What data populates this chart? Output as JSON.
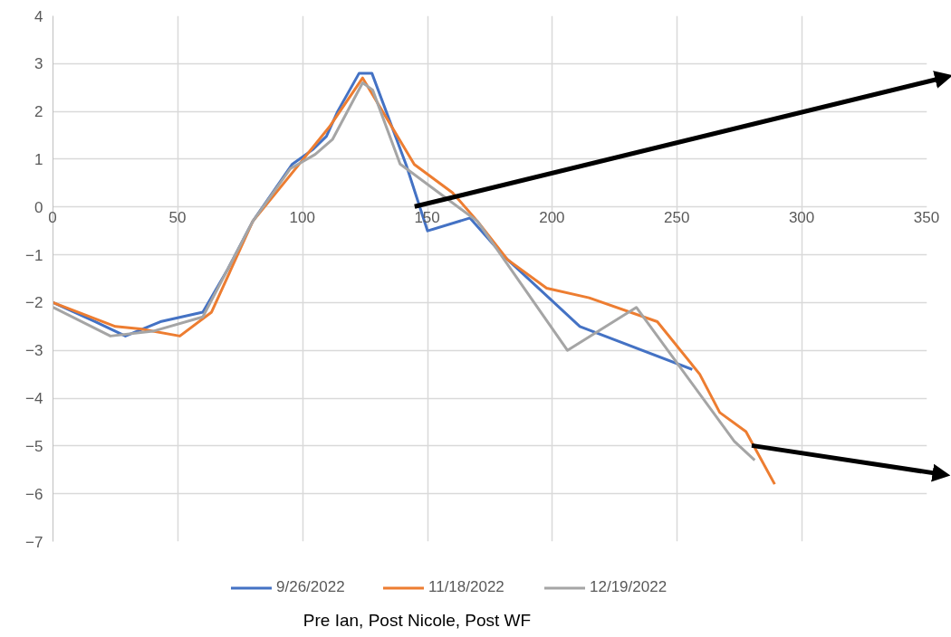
{
  "chart_data": {
    "type": "line",
    "annotations": [
      "Pre Ian, Post Nicole, Post WF"
    ],
    "xlim": [
      0,
      350
    ],
    "xticks": [
      0,
      50,
      100,
      150,
      200,
      250,
      300,
      350
    ],
    "ylim": [
      -7,
      4
    ],
    "yticks": [
      -7,
      -6,
      -5,
      -4,
      -3,
      -2,
      -1,
      0,
      1,
      2,
      3,
      4
    ],
    "grid": true,
    "legend": "bottom",
    "marker": "none",
    "line_style": "solid",
    "series": [
      {
        "name": "9/26/2022",
        "color": "#4472c4",
        "x": [
          0,
          17,
          29,
          43,
          60,
          70,
          80,
          95.7,
          104,
          109.5,
          114,
          122.6,
          127.7,
          141.5,
          150,
          167,
          180,
          211,
          256
        ],
        "values": [
          -2,
          -2.4,
          -2.7,
          -2.4,
          -2.2,
          -1.3,
          -0.3,
          0.89,
          1.2,
          1.48,
          2.0,
          2.8,
          2.8,
          0.87,
          -0.5,
          -0.23,
          -1.0,
          -2.5,
          -3.4
        ]
      },
      {
        "name": "11/18/2022",
        "color": "#ed7d31",
        "x": [
          0,
          25,
          35,
          50.8,
          63.5,
          80,
          94,
          110.6,
          124,
          144.7,
          160,
          170,
          182,
          197.7,
          214.7,
          242,
          259,
          267,
          277.5,
          289
        ],
        "values": [
          -2,
          -2.5,
          -2.55,
          -2.7,
          -2.2,
          -0.3,
          0.6,
          1.67,
          2.7,
          0.89,
          0.3,
          -0.3,
          -1.1,
          -1.7,
          -1.9,
          -2.4,
          -3.5,
          -4.3,
          -4.7,
          -5.8
        ]
      },
      {
        "name": "12/19/2022",
        "color": "#a5a5a5",
        "x": [
          0,
          23,
          40,
          60,
          80,
          95,
          105,
          112,
          124,
          128,
          139,
          170,
          206,
          233.6,
          272.8,
          281
        ],
        "values": [
          -2.1,
          -2.7,
          -2.6,
          -2.3,
          -0.3,
          0.8,
          1.1,
          1.42,
          2.6,
          2.45,
          0.9,
          -0.3,
          -3.0,
          -2.1,
          -4.9,
          -5.3
        ]
      }
    ]
  }
}
